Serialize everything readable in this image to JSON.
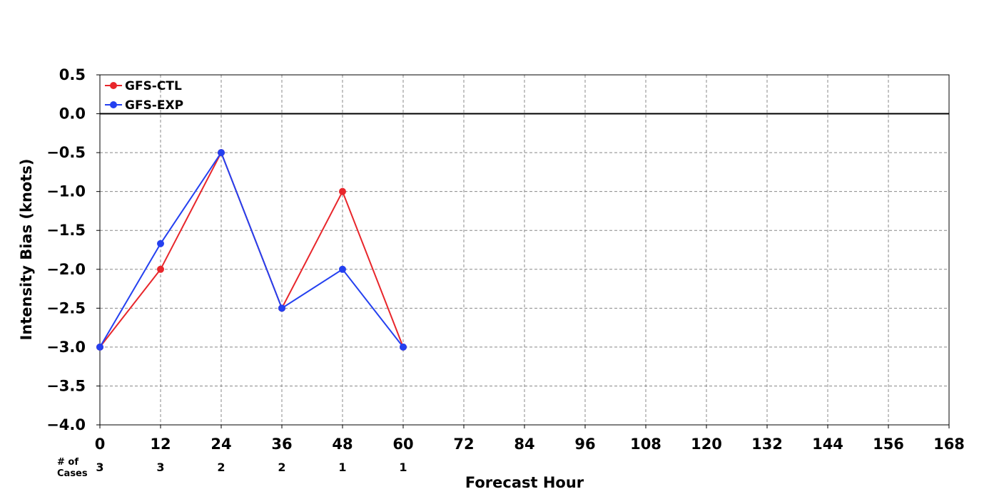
{
  "chart_data": {
    "type": "line",
    "xlabel": "Forecast Hour",
    "ylabel": "Intensity Bias (knots)",
    "xlim": [
      0,
      168
    ],
    "ylim": [
      -4.0,
      0.5
    ],
    "x_ticks": [
      0,
      12,
      24,
      36,
      48,
      60,
      72,
      84,
      96,
      108,
      120,
      132,
      144,
      156,
      168
    ],
    "x_tick_labels": [
      "0",
      "12",
      "24",
      "36",
      "48",
      "60",
      "72",
      "84",
      "96",
      "108",
      "120",
      "132",
      "144",
      "156",
      "168"
    ],
    "y_ticks": [
      0.5,
      0.0,
      -0.5,
      -1.0,
      -1.5,
      -2.0,
      -2.5,
      -3.0,
      -3.5,
      -4.0
    ],
    "y_tick_labels": [
      "0.5",
      "0.0",
      "−0.5",
      "−1.0",
      "−1.5",
      "−2.0",
      "−2.5",
      "−3.0",
      "−3.5",
      "−4.0"
    ],
    "grid": true,
    "zero_line": true,
    "legend_position": "top-left",
    "series": [
      {
        "name": "GFS-CTL",
        "color": "#e8262b",
        "x": [
          0,
          12,
          24,
          36,
          48,
          60
        ],
        "y": [
          -3.0,
          -2.0,
          -0.5,
          -2.5,
          -1.0,
          -3.0
        ]
      },
      {
        "name": "GFS-EXP",
        "color": "#2440f0",
        "x": [
          0,
          12,
          24,
          36,
          48,
          60
        ],
        "y": [
          -3.0,
          -1.67,
          -0.5,
          -2.5,
          -2.0,
          -3.0
        ]
      }
    ],
    "cases": {
      "label_line1": "# of",
      "label_line2": "Cases",
      "x": [
        0,
        12,
        24,
        36,
        48,
        60
      ],
      "counts": [
        "3",
        "3",
        "2",
        "2",
        "1",
        "1"
      ]
    }
  }
}
